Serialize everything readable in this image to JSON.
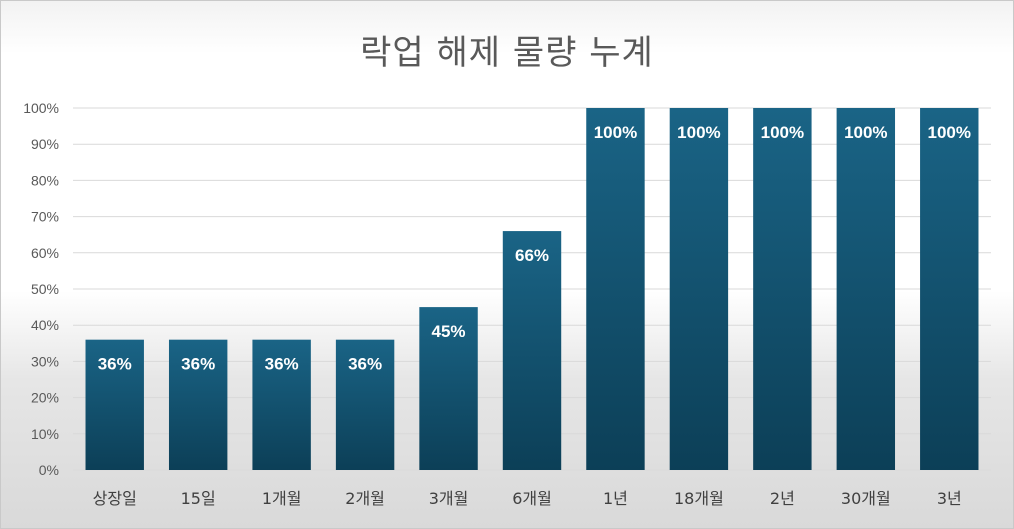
{
  "chart_data": {
    "type": "bar",
    "title": "락업 해제 물량 누계",
    "categories": [
      "상장일",
      "15일",
      "1개월",
      "2개월",
      "3개월",
      "6개월",
      "1년",
      "18개월",
      "2년",
      "30개월",
      "3년"
    ],
    "values": [
      36,
      36,
      36,
      36,
      45,
      66,
      100,
      100,
      100,
      100,
      100
    ],
    "data_labels": [
      "36%",
      "36%",
      "36%",
      "36%",
      "45%",
      "66%",
      "100%",
      "100%",
      "100%",
      "100%",
      "100%"
    ],
    "y_ticks": [
      "0%",
      "10%",
      "20%",
      "30%",
      "40%",
      "50%",
      "60%",
      "70%",
      "80%",
      "90%",
      "100%"
    ],
    "ylim": [
      0,
      100
    ],
    "grid": true,
    "legend": "none",
    "colors": {
      "bar_top": "#1a6486",
      "bar_bottom": "#0c3f57",
      "grid": "#d9d9d9",
      "label": "#ffffff"
    }
  }
}
